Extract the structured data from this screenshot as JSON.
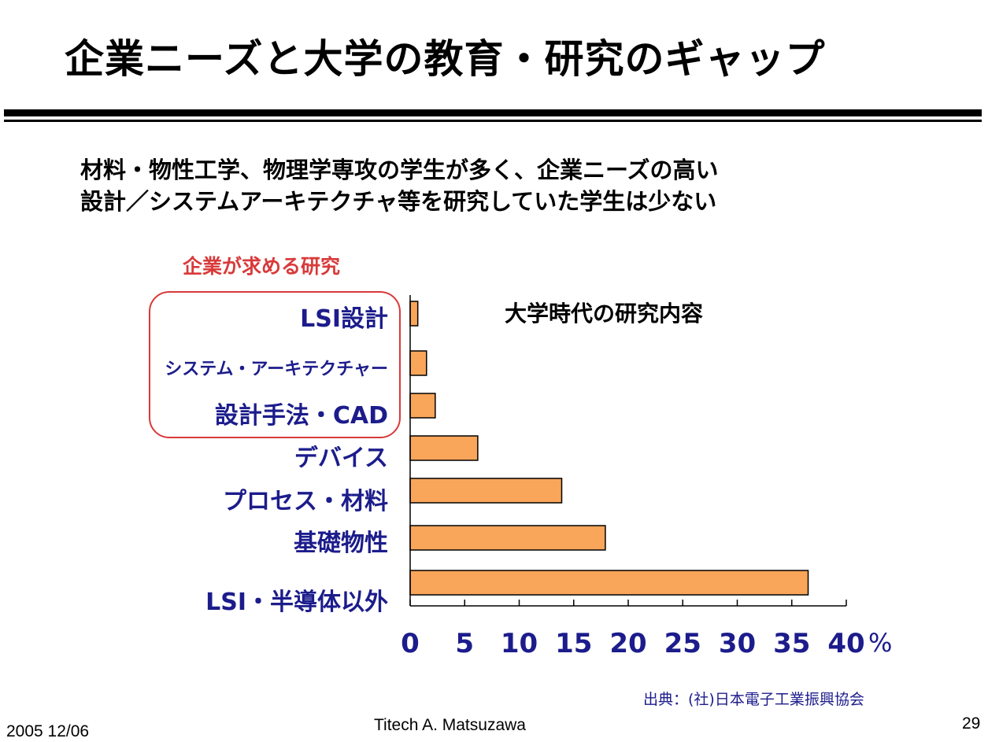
{
  "slide": {
    "title": "企業ニーズと大学の教育・研究のギャップ",
    "subtitle_lines": [
      "材料・物性工学、物理学専攻の学生が多く、企業ニーズの高い",
      "設計／システムアーキテクチャ等を研究していた学生は少ない"
    ],
    "highlight_label": "企業が求める研究",
    "source": "出典：(社)日本電子工業振興協会",
    "footer_date": "2005 12/06",
    "footer_author": "Titech A. Matsuzawa",
    "page_number": "29"
  },
  "colors": {
    "bar_fill": "#f9a55a",
    "bar_stroke": "#000000",
    "category_text": "#1c1c8c",
    "tick_text": "#1c1c8c",
    "highlight": "#d93a3a"
  },
  "chart_data": {
    "type": "bar",
    "orientation": "horizontal",
    "title": "大学時代の研究内容",
    "categories": [
      "LSI設計",
      "システム・アーキテクチャー",
      "設計手法・CAD",
      "デバイス",
      "プロセス・材料",
      "基礎物性",
      "LSI・半導体以外"
    ],
    "values": [
      0.7,
      1.5,
      2.3,
      6.2,
      13.9,
      17.9,
      36.5
    ],
    "xlim": [
      0,
      40
    ],
    "xticks": [
      "0",
      "5",
      "10",
      "15",
      "20",
      "25",
      "30",
      "35",
      "40"
    ],
    "x_unit": "%",
    "grid": false,
    "legend": "none"
  }
}
